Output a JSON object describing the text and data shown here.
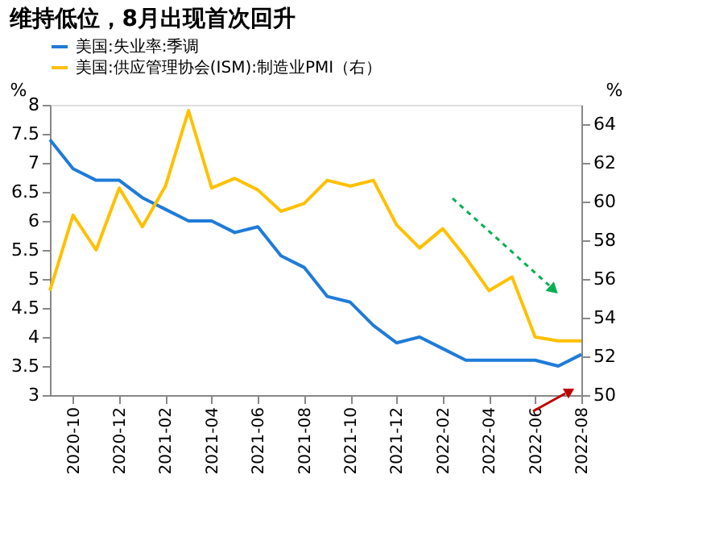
{
  "chart_data": {
    "type": "line",
    "title": "维持低位，8月出现首次回升",
    "categories": [
      null,
      "2020-10",
      null,
      "2020-12",
      null,
      "2021-02",
      null,
      "2021-04",
      null,
      "2021-06",
      null,
      "2021-08",
      null,
      "2021-10",
      null,
      "2021-12",
      null,
      "2022-02",
      null,
      "2022-04",
      null,
      "2022-06",
      null,
      "2022-08"
    ],
    "series": [
      {
        "name": "美国:失业率:季调",
        "color": "#1f7bd8",
        "values": [
          7.4,
          6.9,
          6.7,
          6.7,
          6.4,
          6.2,
          6.0,
          6.0,
          5.8,
          5.9,
          5.4,
          5.2,
          4.7,
          4.6,
          4.2,
          3.9,
          4.0,
          3.8,
          3.6,
          3.6,
          3.6,
          3.6,
          3.5,
          3.7
        ]
      },
      {
        "name": "美国:供应管理协会(ISM):制造业PMI（右）",
        "color": "#ffc000",
        "axis": "y2",
        "values": [
          55.4,
          59.3,
          57.5,
          60.7,
          58.7,
          60.8,
          64.7,
          60.7,
          61.2,
          60.6,
          59.5,
          59.9,
          61.1,
          60.8,
          61.1,
          58.8,
          57.6,
          58.6,
          57.1,
          55.4,
          56.1,
          53.0,
          52.8,
          52.8
        ]
      }
    ],
    "ylabel": "%",
    "y2label": "%",
    "ylim": [
      3,
      8
    ],
    "yticks": [
      3,
      3.5,
      4,
      4.5,
      5,
      5.5,
      6,
      6.5,
      7,
      7.5,
      8
    ],
    "y2lim": [
      50,
      65
    ],
    "y2ticks": [
      50,
      52,
      54,
      56,
      58,
      60,
      62,
      64
    ],
    "legend": "top",
    "grid": false,
    "marker": "none",
    "line_style": "solid"
  }
}
